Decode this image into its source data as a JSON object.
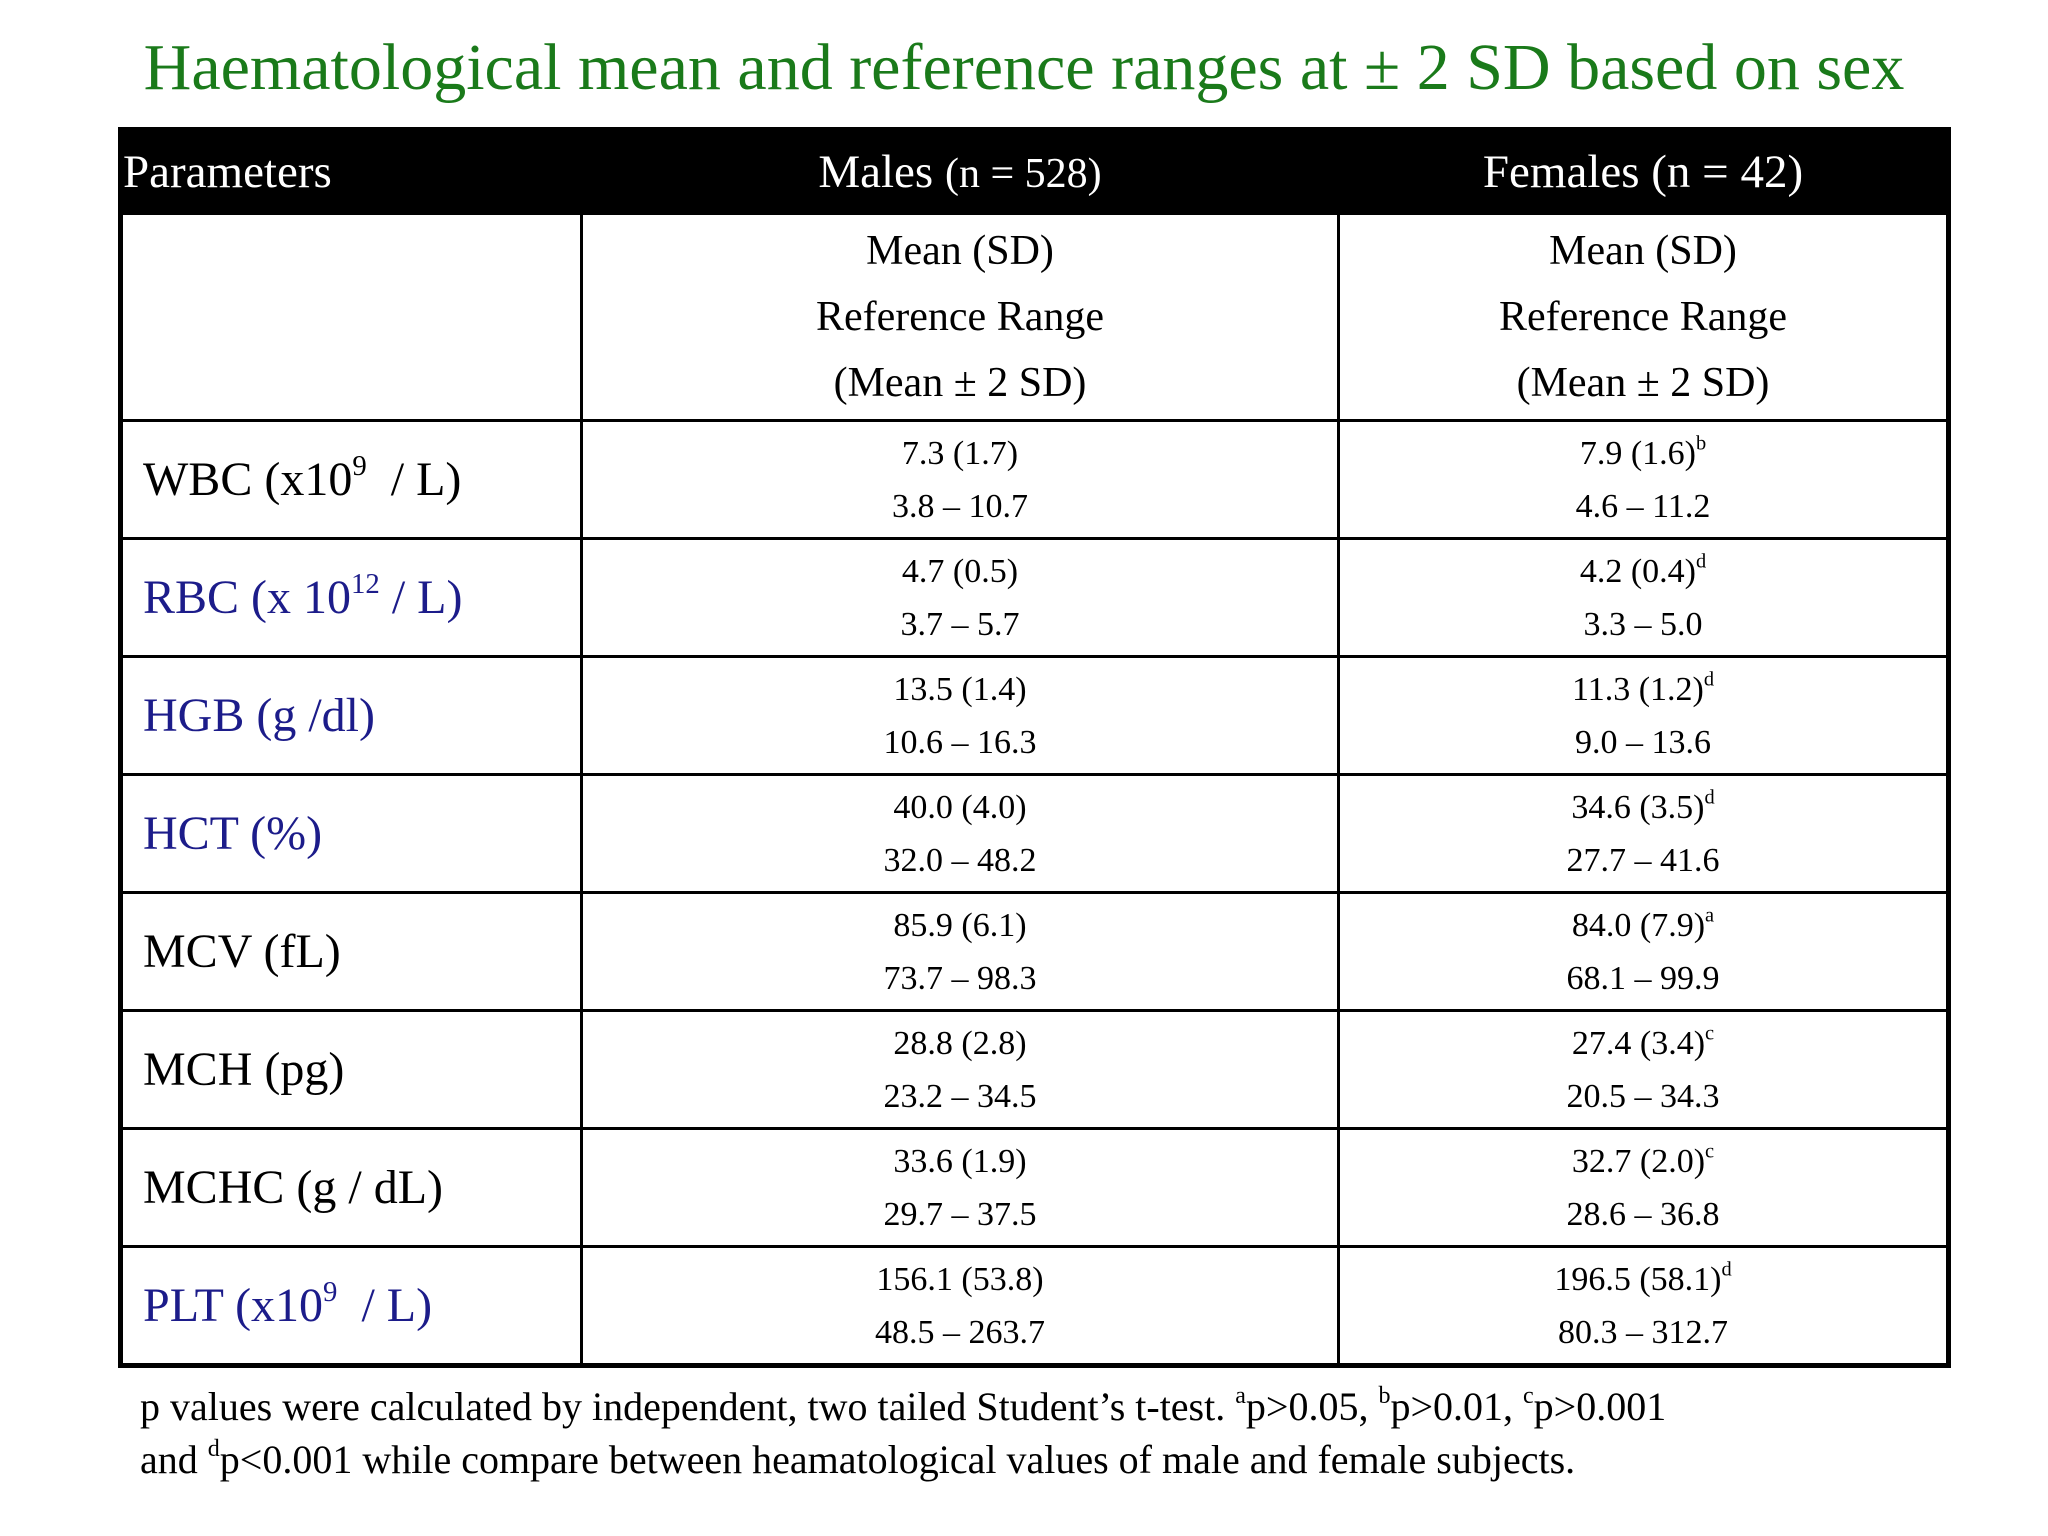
{
  "title": "Haematological mean and reference ranges at ± 2 SD based on sex",
  "header": {
    "parameters": "Parameters",
    "males": "Males",
    "males_n": "(n = 528)",
    "females": "Females (n = 42)"
  },
  "subheader": {
    "males": [
      "Mean (SD)",
      "Reference Range",
      "(Mean ± 2 SD)"
    ],
    "females": [
      "Mean (SD)",
      "Reference Range",
      "(Mean ± 2 SD)"
    ]
  },
  "rows": [
    {
      "color": "#000000",
      "parameter": [
        {
          "text": "WBC (x10"
        },
        {
          "sup": "9"
        },
        {
          "text": "  / L)"
        }
      ],
      "males": {
        "mean": "7.3 (1.7)",
        "range": "3.8 – 10.7"
      },
      "females": {
        "mean": "7.9 (1.6)",
        "sup": "b",
        "range": "4.6 – 11.2"
      }
    },
    {
      "color": "#1c1c8a",
      "parameter": [
        {
          "text": "RBC (x 10"
        },
        {
          "sup": "12"
        },
        {
          "text": " / L)"
        }
      ],
      "males": {
        "mean": "4.7 (0.5)",
        "range": "3.7 – 5.7"
      },
      "females": {
        "mean": "4.2 (0.4)",
        "sup": "d",
        "range": "3.3 – 5.0"
      }
    },
    {
      "color": "#1c1c8a",
      "parameter": [
        {
          "text": "HGB (g /dl)"
        }
      ],
      "males": {
        "mean": "13.5 (1.4)",
        "range": "10.6 – 16.3"
      },
      "females": {
        "mean": "11.3 (1.2)",
        "sup": "d",
        "range": "9.0 – 13.6"
      }
    },
    {
      "color": "#1c1c8a",
      "parameter": [
        {
          "text": "HCT (%)"
        }
      ],
      "males": {
        "mean": "40.0 (4.0)",
        "range": "32.0 – 48.2"
      },
      "females": {
        "mean": "34.6 (3.5)",
        "sup": "d",
        "range": "27.7 – 41.6"
      }
    },
    {
      "color": "#000000",
      "parameter": [
        {
          "text": "MCV (fL)"
        }
      ],
      "males": {
        "mean": "85.9 (6.1)",
        "range": "73.7 – 98.3"
      },
      "females": {
        "mean": "84.0 (7.9)",
        "sup": "a",
        "range": "68.1 – 99.9"
      }
    },
    {
      "color": "#000000",
      "parameter": [
        {
          "text": "MCH (pg)"
        }
      ],
      "males": {
        "mean": "28.8 (2.8)",
        "range": "23.2 – 34.5"
      },
      "females": {
        "mean": "27.4 (3.4)",
        "sup": "c",
        "range": "20.5 – 34.3"
      }
    },
    {
      "color": "#000000",
      "parameter": [
        {
          "text": "MCHC (g / dL)"
        }
      ],
      "males": {
        "mean": "33.6 (1.9)",
        "range": "29.7 – 37.5"
      },
      "females": {
        "mean": "32.7 (2.0)",
        "sup": "c",
        "range": "28.6 – 36.8"
      }
    },
    {
      "color": "#1c1c8a",
      "parameter": [
        {
          "text": "PLT (x10"
        },
        {
          "sup": "9"
        },
        {
          "text": "  / L)"
        }
      ],
      "males": {
        "mean": "156.1 (53.8)",
        "range": "48.5 – 263.7"
      },
      "females": {
        "mean": "196.5 (58.1)",
        "sup": "d",
        "range": "80.3 – 312.7"
      }
    }
  ],
  "footnote": [
    [
      {
        "text": "p values were calculated by independent, two tailed Student’s t-test. "
      },
      {
        "sup": "a"
      },
      {
        "text": "p>0.05, "
      },
      {
        "sup": "b"
      },
      {
        "text": "p>0.01, "
      },
      {
        "sup": "c"
      },
      {
        "text": "p>0.001"
      }
    ],
    [
      {
        "text": "and "
      },
      {
        "sup": "d"
      },
      {
        "text": "p<0.001 while compare between heamatological values of male and female subjects."
      }
    ]
  ]
}
